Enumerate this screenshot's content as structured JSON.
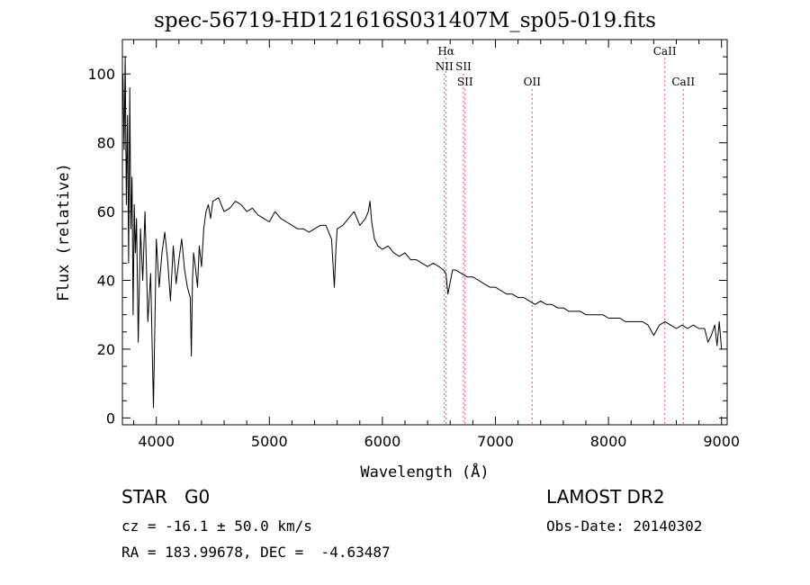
{
  "chart_data": {
    "type": "line",
    "title": "spec-56719-HD121616S031407M_sp05-019.fits",
    "xlabel": "Wavelength (Å)",
    "ylabel": "Flux (relative)",
    "xlim": [
      3700,
      9050
    ],
    "ylim": [
      -2,
      110
    ],
    "xticks": [
      4000,
      5000,
      6000,
      7000,
      8000,
      9000
    ],
    "yticks": [
      0,
      20,
      40,
      60,
      80,
      100
    ],
    "grid": false,
    "line_color": "#000000",
    "marker_color": "#e8707a",
    "series": [
      {
        "x": [
          3705,
          3715,
          3725,
          3735,
          3745,
          3755,
          3765,
          3775,
          3785,
          3795,
          3805,
          3815,
          3825,
          3840,
          3860,
          3880,
          3900,
          3925,
          3950,
          3975,
          4000,
          4025,
          4050,
          4075,
          4100,
          4125,
          4150,
          4175,
          4200,
          4225,
          4250,
          4275,
          4300,
          4310,
          4320,
          4330,
          4345,
          4365,
          4380,
          4400,
          4420,
          4440,
          4460,
          4480,
          4500,
          4550,
          4600,
          4650,
          4700,
          4750,
          4800,
          4850,
          4900,
          4950,
          5000,
          5050,
          5100,
          5150,
          5200,
          5250,
          5300,
          5350,
          5400,
          5450,
          5500,
          5550,
          5575,
          5590,
          5600,
          5650,
          5700,
          5750,
          5800,
          5850,
          5875,
          5890,
          5905,
          5930,
          5960,
          6000,
          6050,
          6100,
          6150,
          6200,
          6250,
          6300,
          6350,
          6400,
          6450,
          6500,
          6540,
          6562,
          6580,
          6620,
          6650,
          6700,
          6750,
          6800,
          6850,
          6900,
          6950,
          7000,
          7050,
          7100,
          7150,
          7200,
          7250,
          7300,
          7350,
          7400,
          7450,
          7500,
          7550,
          7600,
          7650,
          7700,
          7750,
          7800,
          7850,
          7900,
          7950,
          8000,
          8050,
          8100,
          8150,
          8200,
          8250,
          8300,
          8350,
          8400,
          8450,
          8500,
          8550,
          8600,
          8650,
          8700,
          8750,
          8800,
          8850,
          8880,
          8910,
          8940,
          8960,
          8980,
          9000
        ],
        "y": [
          100,
          78,
          105,
          62,
          88,
          45,
          96,
          55,
          70,
          30,
          62,
          48,
          58,
          22,
          55,
          40,
          60,
          28,
          42,
          3,
          52,
          38,
          48,
          54,
          46,
          34,
          50,
          39,
          46,
          52,
          43,
          38,
          35,
          18,
          40,
          48,
          44,
          38,
          50,
          44,
          55,
          60,
          62,
          58,
          63,
          64,
          60,
          61,
          63,
          62,
          60,
          61,
          59,
          58,
          57,
          60,
          58,
          57,
          56,
          55,
          55,
          54,
          55,
          56,
          56,
          52,
          38,
          50,
          55,
          56,
          58,
          60,
          56,
          58,
          60,
          63,
          57,
          52,
          50,
          49,
          50,
          48,
          47,
          48,
          46,
          46,
          45,
          44,
          45,
          44,
          43,
          42,
          36,
          43,
          43,
          42,
          41,
          41,
          40,
          39,
          38,
          38,
          37,
          36,
          36,
          35,
          35,
          34,
          33,
          34,
          33,
          33,
          32,
          32,
          31,
          31,
          31,
          30,
          30,
          30,
          30,
          29,
          29,
          29,
          28,
          28,
          28,
          28,
          27,
          24,
          27,
          28,
          27,
          26,
          27,
          26,
          27,
          26,
          26,
          22,
          24,
          27,
          21,
          28,
          20
        ]
      }
    ],
    "lines": [
      {
        "name": "Hα",
        "wavelength": 6563,
        "label_row": 1
      },
      {
        "name": "NII",
        "wavelength": 6548,
        "label_row": 2
      },
      {
        "name": "SII",
        "wavelength": 6717,
        "label_row": 2
      },
      {
        "name": "SII",
        "wavelength": 6731,
        "label_row": 3
      },
      {
        "name": "OII",
        "wavelength": 7325,
        "label_row": 3
      },
      {
        "name": "CaII",
        "wavelength": 8498,
        "label_row": 1
      },
      {
        "name": "CaII",
        "wavelength": 8662,
        "label_row": 3
      }
    ]
  },
  "info": {
    "object_class": "STAR   G0",
    "survey": "LAMOST DR2",
    "cz": "cz = -16.1 ± 50.0 km/s",
    "obs_date": "Obs-Date: 20140302",
    "radec": "RA = 183.99678, DEC =  -4.63487"
  }
}
